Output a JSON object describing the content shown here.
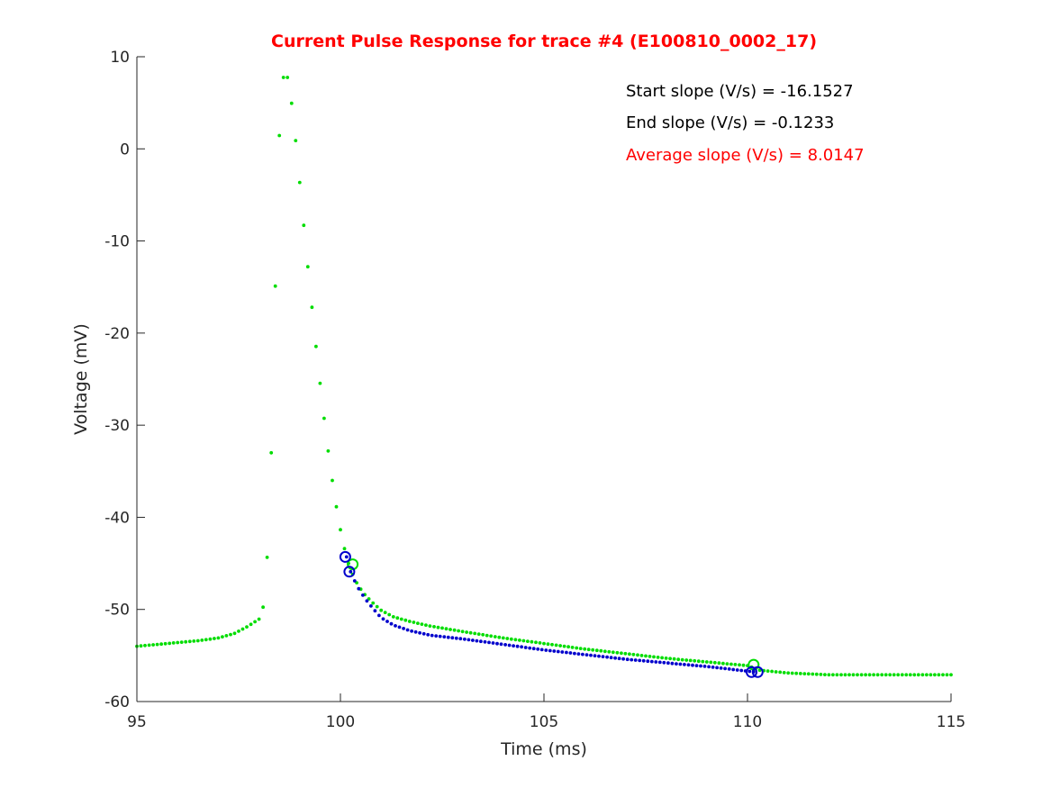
{
  "chart_data": {
    "type": "scatter",
    "title": "Current Pulse Response for trace #4 (E100810_0002_17)",
    "title_color": "#ff0000",
    "xlabel": "Time (ms)",
    "ylabel": "Voltage (mV)",
    "xlim": [
      95,
      115
    ],
    "ylim": [
      -60,
      10
    ],
    "xticks": [
      95,
      100,
      105,
      110,
      115
    ],
    "yticks": [
      -60,
      -50,
      -40,
      -30,
      -20,
      -10,
      0,
      10
    ],
    "grid": false,
    "annotations": [
      {
        "text": "Start slope (V/s) = -16.1527",
        "color": "#000000"
      },
      {
        "text": "End slope (V/s) = -0.1233",
        "color": "#000000"
      },
      {
        "text": "Average slope (V/s) = 8.0147",
        "color": "#ff0000"
      }
    ],
    "series": [
      {
        "color": "#00dd00",
        "marker": "dot",
        "anchors": [
          [
            95.0,
            -54.0
          ],
          [
            95.5,
            -53.8
          ],
          [
            96.0,
            -53.6
          ],
          [
            96.5,
            -53.4
          ],
          [
            97.0,
            -53.1
          ],
          [
            97.4,
            -52.6
          ],
          [
            97.7,
            -51.9
          ],
          [
            97.95,
            -51.2
          ],
          [
            98.05,
            -50.9
          ],
          [
            98.15,
            -48.6
          ],
          [
            98.25,
            -40.1
          ],
          [
            98.35,
            -25.9
          ],
          [
            98.45,
            -3.9
          ],
          [
            98.55,
            6.8
          ],
          [
            98.65,
            8.7
          ],
          [
            98.75,
            6.8
          ],
          [
            98.85,
            3.1
          ],
          [
            98.95,
            -1.3
          ],
          [
            99.05,
            -6.0
          ],
          [
            99.15,
            -10.6
          ],
          [
            99.25,
            -15.0
          ],
          [
            99.35,
            -19.4
          ],
          [
            99.45,
            -23.5
          ],
          [
            99.55,
            -27.4
          ],
          [
            99.65,
            -31.1
          ],
          [
            99.75,
            -34.5
          ],
          [
            99.85,
            -37.5
          ],
          [
            99.95,
            -40.2
          ],
          [
            100.05,
            -42.5
          ],
          [
            100.15,
            -44.3
          ],
          [
            100.25,
            -45.7
          ],
          [
            100.35,
            -46.7
          ],
          [
            100.45,
            -47.5
          ],
          [
            100.6,
            -48.4
          ],
          [
            100.8,
            -49.3
          ],
          [
            101.0,
            -50.1
          ],
          [
            101.3,
            -50.8
          ],
          [
            101.7,
            -51.3
          ],
          [
            102.2,
            -51.8
          ],
          [
            103.0,
            -52.4
          ],
          [
            104.0,
            -53.1
          ],
          [
            105.0,
            -53.7
          ],
          [
            106.0,
            -54.3
          ],
          [
            107.0,
            -54.8
          ],
          [
            108.0,
            -55.3
          ],
          [
            109.0,
            -55.7
          ],
          [
            110.0,
            -56.1
          ],
          [
            110.3,
            -56.6
          ],
          [
            111.0,
            -56.9
          ],
          [
            112.0,
            -57.1
          ],
          [
            113.0,
            -57.1
          ],
          [
            114.0,
            -57.1
          ],
          [
            115.0,
            -57.1
          ]
        ],
        "circles": [
          [
            100.3,
            -45.1
          ],
          [
            110.15,
            -56.0
          ]
        ]
      },
      {
        "color": "#0000cc",
        "marker": "dot",
        "anchors": [
          [
            100.15,
            -44.3
          ],
          [
            100.25,
            -45.9
          ],
          [
            100.4,
            -47.4
          ],
          [
            100.6,
            -48.8
          ],
          [
            100.8,
            -49.9
          ],
          [
            101.0,
            -50.9
          ],
          [
            101.3,
            -51.7
          ],
          [
            101.7,
            -52.3
          ],
          [
            102.2,
            -52.8
          ],
          [
            103.0,
            -53.2
          ],
          [
            104.0,
            -53.8
          ],
          [
            105.0,
            -54.4
          ],
          [
            106.0,
            -54.9
          ],
          [
            107.0,
            -55.4
          ],
          [
            108.0,
            -55.8
          ],
          [
            109.0,
            -56.2
          ],
          [
            110.0,
            -56.7
          ],
          [
            110.2,
            -56.8
          ]
        ],
        "circles": [
          [
            100.12,
            -44.3
          ],
          [
            100.22,
            -45.9
          ],
          [
            110.1,
            -56.8
          ],
          [
            110.25,
            -56.8
          ]
        ]
      }
    ]
  }
}
